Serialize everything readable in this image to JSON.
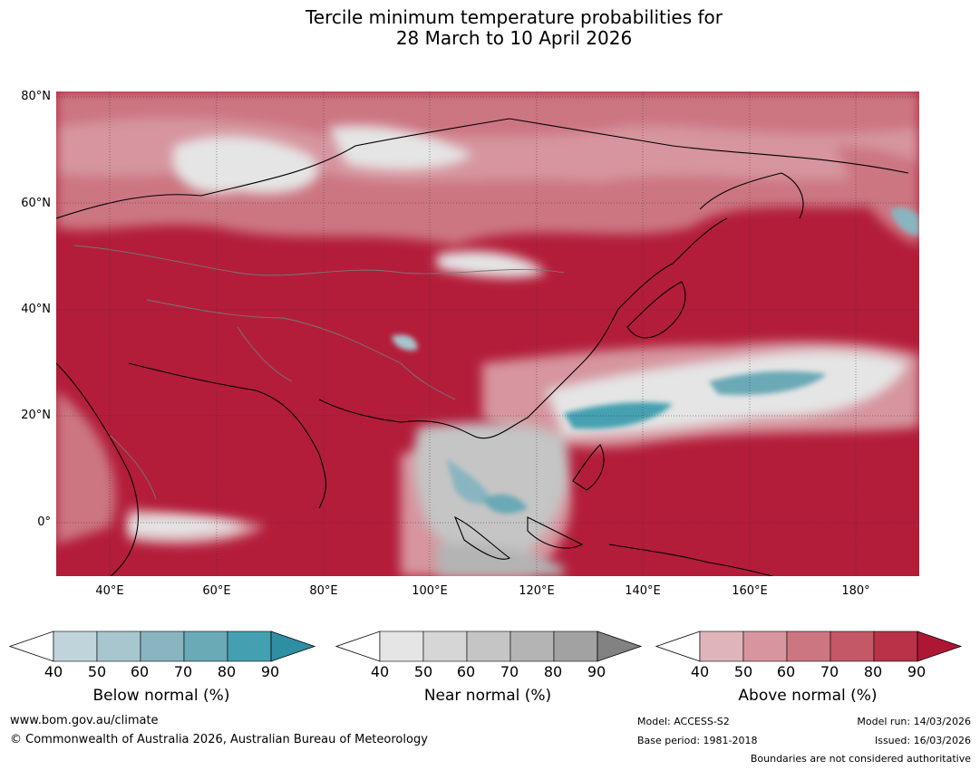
{
  "title_line1": "Tercile minimum temperature probabilities for",
  "title_line2": "28 March to 10 April 2026",
  "map": {
    "lat_labels": [
      "80°N",
      "60°N",
      "40°N",
      "20°N",
      "0°"
    ],
    "lon_labels": [
      "40°E",
      "60°E",
      "80°E",
      "100°E",
      "120°E",
      "140°E",
      "160°E",
      "180°"
    ],
    "lon_range": [
      30,
      191
    ],
    "lat_range": [
      -10,
      81
    ]
  },
  "colorbars": {
    "below": {
      "label": "Below normal (%)",
      "ticks": [
        "40",
        "50",
        "60",
        "70",
        "80",
        "90"
      ],
      "colors": [
        "#ffffff",
        "#c0d4db",
        "#a7c6cd",
        "#88b5c0",
        "#6aa9b6",
        "#44a0b1",
        "#2e8fa3"
      ]
    },
    "near": {
      "label": "Near normal (%)",
      "ticks": [
        "40",
        "50",
        "60",
        "70",
        "80",
        "90"
      ],
      "colors": [
        "#ffffff",
        "#e5e5e5",
        "#d6d6d6",
        "#c5c5c5",
        "#b4b4b4",
        "#a2a2a2",
        "#828282"
      ]
    },
    "above": {
      "label": "Above normal (%)",
      "ticks": [
        "40",
        "50",
        "60",
        "70",
        "80",
        "90"
      ],
      "colors": [
        "#ffffff",
        "#e0b4bb",
        "#d6959f",
        "#cc7682",
        "#c45867",
        "#ba3247",
        "#ae1734"
      ]
    }
  },
  "footer": {
    "url": "www.bom.gov.au/climate",
    "copyright": "© Commonwealth of Australia 2026, Australian Bureau of Meteorology",
    "model": "Model: ACCESS-S2",
    "base_period": "Base period: 1981-2018",
    "model_run": "Model run: 14/03/2026",
    "issued": "Issued: 16/03/2026",
    "disclaimer": "Boundaries are not considered authoritative"
  }
}
